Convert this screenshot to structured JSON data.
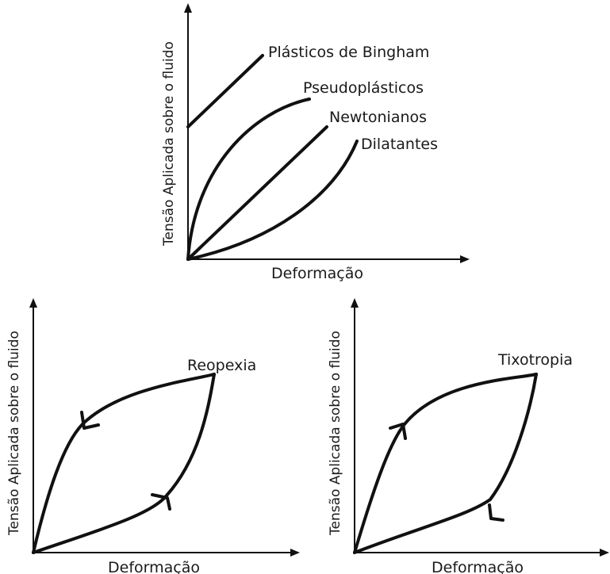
{
  "top_chart": {
    "xlabel": "Deformação",
    "ylabel": "Tensão Aplicada sobre o fluido",
    "series": [
      {
        "name": "Plásticos de Bingham"
      },
      {
        "name": "Pseudoplásticos"
      },
      {
        "name": "Newtonianos"
      },
      {
        "name": "Dilatantes"
      }
    ]
  },
  "left_chart": {
    "title": "Reopexia",
    "xlabel": "Deformação",
    "ylabel": "Tensão Aplicada sobre o fluido"
  },
  "right_chart": {
    "title": "Tixotropia",
    "xlabel": "Deformação",
    "ylabel": "Tensão Aplicada sobre o fluido"
  }
}
